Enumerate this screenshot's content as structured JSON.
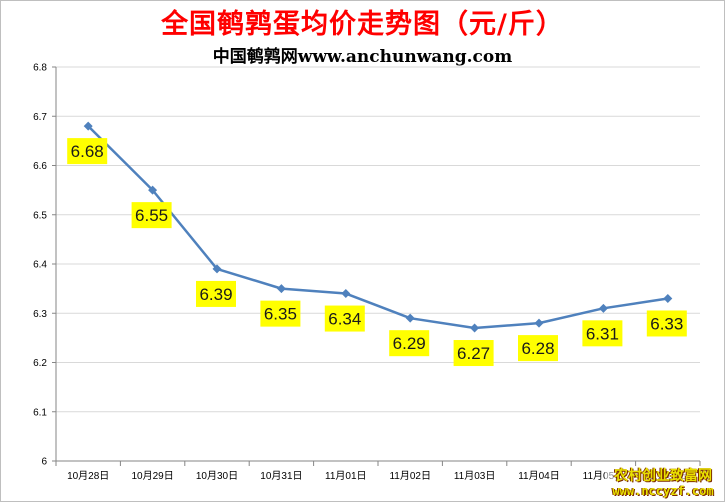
{
  "header": {
    "title": "全国鹌鹑蛋均价走势图（元/斤）",
    "subtitle": "中国鹌鹑网www.anchunwang.com"
  },
  "watermark": {
    "line1": "农村创业致富网",
    "line2": "www.nccyzf.com"
  },
  "colors": {
    "line": "#4f81bd",
    "label_bg": "#ffff00",
    "title": "#ff0000",
    "grid": "#d9d9d9"
  },
  "chart_data": {
    "type": "line",
    "title": "全国鹌鹑蛋均价走势图（元/斤）",
    "xlabel": "",
    "ylabel": "",
    "categories": [
      "10月28日",
      "10月29日",
      "10月30日",
      "10月31日",
      "11月01日",
      "11月02日",
      "11月03日",
      "11月04日",
      "11月05日",
      "11月06日"
    ],
    "series": [
      {
        "values": [
          6.68,
          6.55,
          6.39,
          6.35,
          6.34,
          6.29,
          6.27,
          6.28,
          6.31,
          6.33
        ]
      }
    ],
    "data_labels": [
      "6.68",
      "6.55",
      "6.39",
      "6.35",
      "6.34",
      "6.29",
      "6.27",
      "6.28",
      "6.31",
      "6.33"
    ],
    "ylim": [
      6,
      6.8
    ],
    "yticks": [
      "6",
      "6.1",
      "6.2",
      "6.3",
      "6.4",
      "6.5",
      "6.6",
      "6.7",
      "6.8"
    ],
    "grid": true,
    "legend": "none"
  }
}
